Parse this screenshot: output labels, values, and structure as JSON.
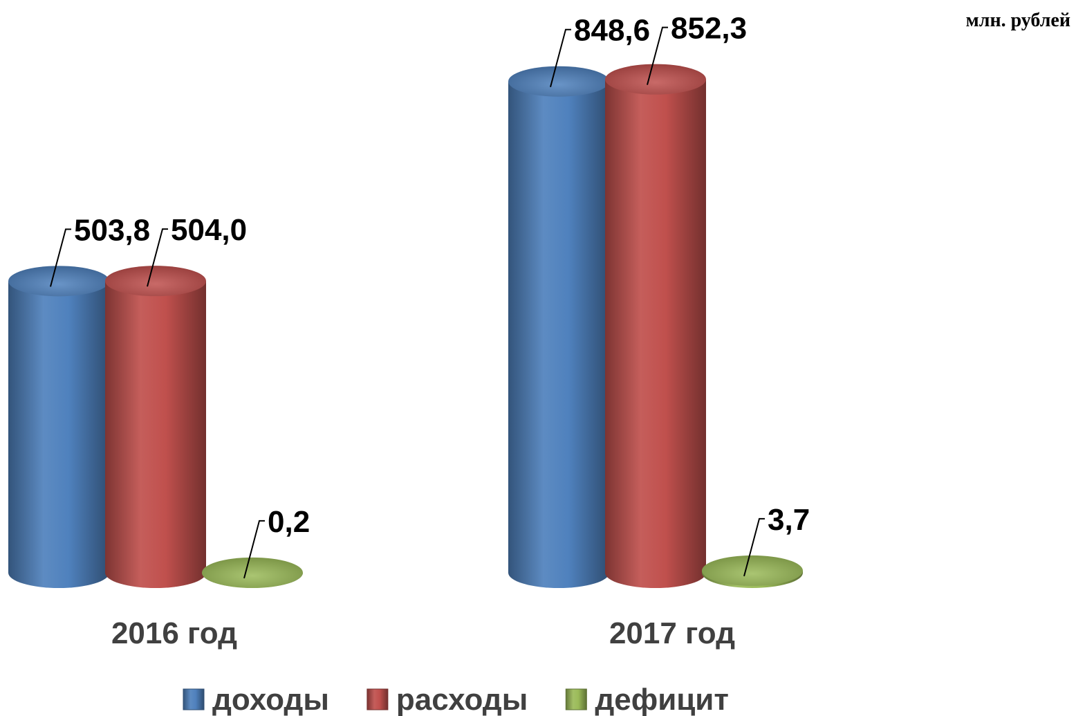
{
  "chart_data": {
    "type": "cylinder_bar",
    "unit_label": "млн. рублей",
    "categories": [
      "2016 год",
      "2017 год"
    ],
    "series": [
      {
        "name": "доходы",
        "color": "#4f81bd",
        "values": [
          503.8,
          848.6
        ],
        "value_labels": [
          "503,8",
          "848,6"
        ]
      },
      {
        "name": "расходы",
        "color": "#c0504d",
        "values": [
          504.0,
          852.3
        ],
        "value_labels": [
          "504,0",
          "852,3"
        ]
      },
      {
        "name": "дефицит",
        "color": "#9bbb59",
        "values": [
          0.2,
          3.7
        ],
        "value_labels": [
          "0,2",
          "3,7"
        ]
      }
    ],
    "legend": "bottom"
  }
}
